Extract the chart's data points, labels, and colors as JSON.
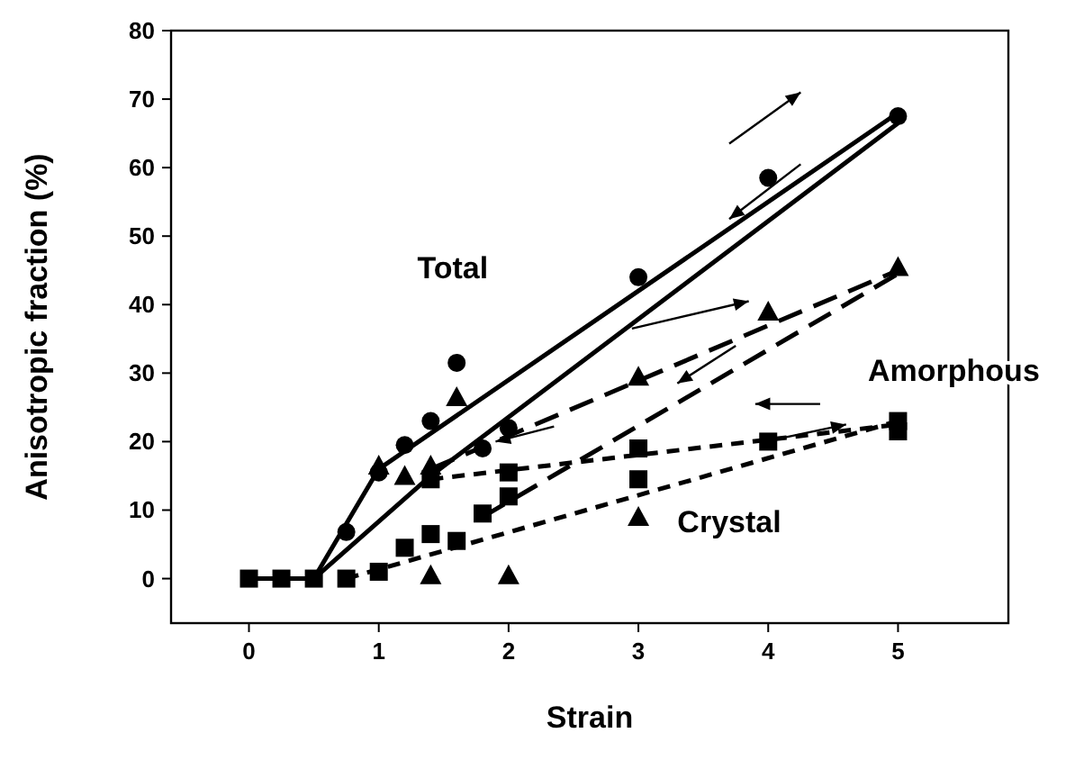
{
  "chart_data": {
    "type": "scatter",
    "xlabel": "Strain",
    "ylabel": "Anisotropic fraction (%)",
    "xlim": [
      -0.6,
      5.85
    ],
    "ylim": [
      -6.5,
      80
    ],
    "xticks": [
      0,
      1,
      2,
      3,
      4,
      5
    ],
    "yticks": [
      0,
      10,
      20,
      30,
      40,
      50,
      60,
      70,
      80
    ],
    "grid": false,
    "series": [
      {
        "type": "line",
        "color": "#000000",
        "marker": "none",
        "line_style": "solid",
        "x": [
          0,
          0.5,
          1,
          5
        ],
        "values": [
          0,
          0,
          16,
          68
        ]
      },
      {
        "type": "line",
        "color": "#000000",
        "marker": "none",
        "line_style": "solid",
        "x": [
          0.5,
          1.4,
          5
        ],
        "values": [
          0,
          15,
          66.5
        ]
      },
      {
        "type": "line",
        "color": "#000000",
        "marker": "none",
        "line_style": "dashed",
        "x": [
          1.4,
          5
        ],
        "values": [
          16,
          45
        ]
      },
      {
        "type": "line",
        "color": "#000000",
        "marker": "none",
        "line_style": "dashed",
        "x": [
          1.8,
          5
        ],
        "values": [
          9,
          44.5
        ]
      },
      {
        "type": "line",
        "color": "#000000",
        "marker": "none",
        "line_style": "dotted",
        "x": [
          1.4,
          5
        ],
        "values": [
          14.5,
          22.5
        ]
      },
      {
        "type": "line",
        "color": "#000000",
        "marker": "none",
        "line_style": "dotted",
        "x": [
          0.75,
          5
        ],
        "values": [
          0,
          23
        ]
      },
      {
        "color": "#000000",
        "marker": "triangle",
        "x": [
          1,
          1.2,
          1.4,
          1.6,
          3,
          4,
          5,
          1.4,
          2,
          3
        ],
        "values": [
          16.5,
          15,
          16.5,
          26.5,
          29.5,
          39,
          45.5,
          0.5,
          0.5,
          9
        ]
      },
      {
        "color": "#000000",
        "marker": "square",
        "x": [
          0,
          0.25,
          0.5,
          0.75,
          1,
          1.2,
          1.4,
          1.4,
          1.6,
          1.8,
          2,
          2,
          3,
          3,
          4,
          5,
          5
        ],
        "values": [
          0,
          0,
          0,
          0,
          1,
          4.5,
          6.5,
          14.5,
          5.5,
          9.5,
          12,
          15.5,
          19,
          14.5,
          20,
          21.5,
          23
        ]
      },
      {
        "color": "#000000",
        "marker": "circle",
        "x": [
          0.75,
          1,
          1.2,
          1.4,
          1.6,
          1.8,
          2,
          3,
          4,
          5
        ],
        "values": [
          6.8,
          15.5,
          19.5,
          23,
          31.5,
          19,
          22,
          44,
          58.5,
          67.5
        ]
      }
    ],
    "annotations": [
      "Total",
      "Amorphous",
      "Crystal"
    ]
  }
}
